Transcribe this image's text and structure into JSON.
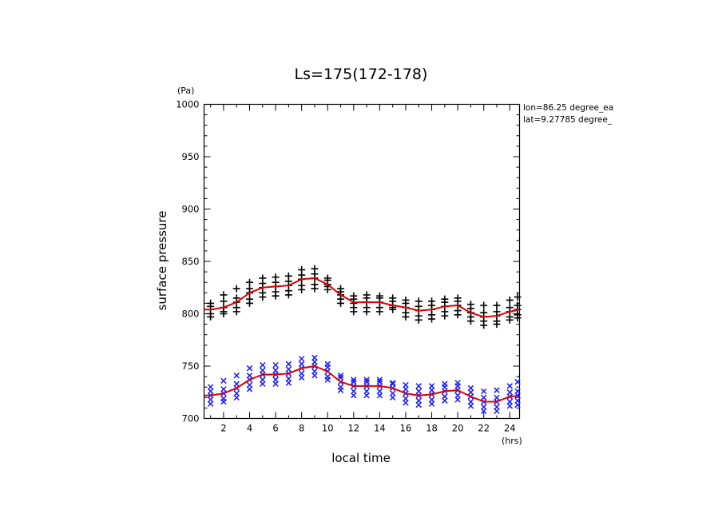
{
  "chart_data": {
    "type": "scatter",
    "title": "Ls=175(172-178)",
    "xlabel": "local time",
    "ylabel": "surface pressure",
    "x_unit": "(hrs)",
    "y_unit": "(Pa)",
    "xlim": [
      0.5,
      24.75
    ],
    "ylim": [
      700,
      1000
    ],
    "x_ticks": [
      2,
      4,
      6,
      8,
      10,
      12,
      14,
      16,
      18,
      20,
      22,
      24
    ],
    "y_ticks": [
      700,
      750,
      800,
      850,
      900,
      950,
      1000
    ],
    "annotations": [
      "lon=86.25 degree_ea",
      "lat=9.27785 degree_"
    ],
    "grid": false,
    "colors": {
      "upper_markers": "#000000",
      "lower_markers": "#1a1aff",
      "fit_line": "#dd0000",
      "axes": "#000000"
    },
    "series": [
      {
        "marker": "plus",
        "color": "#000000",
        "points": [
          [
            1,
            804
          ],
          [
            1,
            800
          ],
          [
            1,
            810
          ],
          [
            1,
            797
          ],
          [
            1,
            807
          ],
          [
            2,
            806
          ],
          [
            2,
            802
          ],
          [
            2,
            812
          ],
          [
            2,
            800
          ],
          [
            2,
            818
          ],
          [
            3,
            811
          ],
          [
            3,
            806
          ],
          [
            3,
            815
          ],
          [
            3,
            802
          ],
          [
            3,
            824
          ],
          [
            4,
            820
          ],
          [
            4,
            814
          ],
          [
            4,
            824
          ],
          [
            4,
            810
          ],
          [
            4,
            830
          ],
          [
            5,
            825
          ],
          [
            5,
            820
          ],
          [
            5,
            829
          ],
          [
            5,
            816
          ],
          [
            5,
            834
          ],
          [
            6,
            826
          ],
          [
            6,
            821
          ],
          [
            6,
            830
          ],
          [
            6,
            817
          ],
          [
            6,
            835
          ],
          [
            7,
            827
          ],
          [
            7,
            822
          ],
          [
            7,
            831
          ],
          [
            7,
            818
          ],
          [
            7,
            836
          ],
          [
            8,
            833
          ],
          [
            8,
            827
          ],
          [
            8,
            837
          ],
          [
            8,
            823
          ],
          [
            8,
            842
          ],
          [
            9,
            834
          ],
          [
            9,
            828
          ],
          [
            9,
            838
          ],
          [
            9,
            824
          ],
          [
            9,
            843
          ],
          [
            10,
            828
          ],
          [
            10,
            823
          ],
          [
            10,
            832
          ],
          [
            10,
            826
          ],
          [
            10,
            834
          ],
          [
            11,
            818
          ],
          [
            11,
            814
          ],
          [
            11,
            821
          ],
          [
            11,
            810
          ],
          [
            11,
            824
          ],
          [
            12,
            810
          ],
          [
            12,
            806
          ],
          [
            12,
            814
          ],
          [
            12,
            802
          ],
          [
            12,
            817
          ],
          [
            13,
            811
          ],
          [
            13,
            806
          ],
          [
            13,
            815
          ],
          [
            13,
            802
          ],
          [
            13,
            818
          ],
          [
            14,
            811
          ],
          [
            14,
            806
          ],
          [
            14,
            815
          ],
          [
            14,
            802
          ],
          [
            14,
            817
          ],
          [
            15,
            808
          ],
          [
            15,
            804
          ],
          [
            15,
            812
          ],
          [
            15,
            806
          ],
          [
            15,
            815
          ],
          [
            16,
            806
          ],
          [
            16,
            801
          ],
          [
            16,
            810
          ],
          [
            16,
            797
          ],
          [
            16,
            813
          ],
          [
            17,
            803
          ],
          [
            17,
            798
          ],
          [
            17,
            807
          ],
          [
            17,
            794
          ],
          [
            17,
            812
          ],
          [
            18,
            804
          ],
          [
            18,
            799
          ],
          [
            18,
            808
          ],
          [
            18,
            795
          ],
          [
            18,
            812
          ],
          [
            19,
            807
          ],
          [
            19,
            802
          ],
          [
            19,
            811
          ],
          [
            19,
            798
          ],
          [
            19,
            814
          ],
          [
            20,
            808
          ],
          [
            20,
            803
          ],
          [
            20,
            812
          ],
          [
            20,
            799
          ],
          [
            20,
            815
          ],
          [
            21,
            801
          ],
          [
            21,
            797
          ],
          [
            21,
            805
          ],
          [
            21,
            793
          ],
          [
            21,
            809
          ],
          [
            22,
            797
          ],
          [
            22,
            793
          ],
          [
            22,
            801
          ],
          [
            22,
            789
          ],
          [
            22,
            808
          ],
          [
            23,
            798
          ],
          [
            23,
            793
          ],
          [
            23,
            802
          ],
          [
            23,
            790
          ],
          [
            23,
            808
          ],
          [
            24,
            802
          ],
          [
            24,
            797
          ],
          [
            24,
            806
          ],
          [
            24,
            794
          ],
          [
            24,
            813
          ],
          [
            24.6,
            804
          ],
          [
            24.6,
            799
          ],
          [
            24.6,
            808
          ],
          [
            24.6,
            796
          ],
          [
            24.6,
            816
          ]
        ]
      },
      {
        "marker": "x",
        "color": "#1a1aff",
        "points": [
          [
            1,
            722
          ],
          [
            1,
            718
          ],
          [
            1,
            726
          ],
          [
            1,
            714
          ],
          [
            1,
            730
          ],
          [
            2,
            724
          ],
          [
            2,
            719
          ],
          [
            2,
            728
          ],
          [
            2,
            716
          ],
          [
            2,
            736
          ],
          [
            3,
            729
          ],
          [
            3,
            724
          ],
          [
            3,
            733
          ],
          [
            3,
            720
          ],
          [
            3,
            741
          ],
          [
            4,
            737
          ],
          [
            4,
            732
          ],
          [
            4,
            741
          ],
          [
            4,
            728
          ],
          [
            4,
            748
          ],
          [
            5,
            742
          ],
          [
            5,
            737
          ],
          [
            5,
            746
          ],
          [
            5,
            733
          ],
          [
            5,
            751
          ],
          [
            6,
            742
          ],
          [
            6,
            737
          ],
          [
            6,
            746
          ],
          [
            6,
            733
          ],
          [
            6,
            751
          ],
          [
            7,
            743
          ],
          [
            7,
            738
          ],
          [
            7,
            747
          ],
          [
            7,
            734
          ],
          [
            7,
            752
          ],
          [
            8,
            748
          ],
          [
            8,
            743
          ],
          [
            8,
            752
          ],
          [
            8,
            739
          ],
          [
            8,
            757
          ],
          [
            9,
            750
          ],
          [
            9,
            745
          ],
          [
            9,
            754
          ],
          [
            9,
            741
          ],
          [
            9,
            758
          ],
          [
            10,
            745
          ],
          [
            10,
            740
          ],
          [
            10,
            749
          ],
          [
            10,
            737
          ],
          [
            10,
            752
          ],
          [
            11,
            735
          ],
          [
            11,
            730
          ],
          [
            11,
            739
          ],
          [
            11,
            727
          ],
          [
            11,
            741
          ],
          [
            12,
            731
          ],
          [
            12,
            726
          ],
          [
            12,
            735
          ],
          [
            12,
            722
          ],
          [
            12,
            737
          ],
          [
            13,
            731
          ],
          [
            13,
            726
          ],
          [
            13,
            735
          ],
          [
            13,
            722
          ],
          [
            13,
            737
          ],
          [
            14,
            731
          ],
          [
            14,
            726
          ],
          [
            14,
            735
          ],
          [
            14,
            722
          ],
          [
            14,
            737
          ],
          [
            15,
            729
          ],
          [
            15,
            724
          ],
          [
            15,
            733
          ],
          [
            15,
            720
          ],
          [
            15,
            734
          ],
          [
            16,
            724
          ],
          [
            16,
            719
          ],
          [
            16,
            728
          ],
          [
            16,
            715
          ],
          [
            16,
            732
          ],
          [
            17,
            722
          ],
          [
            17,
            717
          ],
          [
            17,
            726
          ],
          [
            17,
            713
          ],
          [
            17,
            731
          ],
          [
            18,
            723
          ],
          [
            18,
            718
          ],
          [
            18,
            727
          ],
          [
            18,
            714
          ],
          [
            18,
            731
          ],
          [
            19,
            726
          ],
          [
            19,
            721
          ],
          [
            19,
            730
          ],
          [
            19,
            717
          ],
          [
            19,
            733
          ],
          [
            20,
            727
          ],
          [
            20,
            722
          ],
          [
            20,
            731
          ],
          [
            20,
            718
          ],
          [
            20,
            734
          ],
          [
            21,
            721
          ],
          [
            21,
            716
          ],
          [
            21,
            725
          ],
          [
            21,
            712
          ],
          [
            21,
            729
          ],
          [
            22,
            716
          ],
          [
            22,
            711
          ],
          [
            22,
            720
          ],
          [
            22,
            707
          ],
          [
            22,
            726
          ],
          [
            23,
            716
          ],
          [
            23,
            711
          ],
          [
            23,
            720
          ],
          [
            23,
            707
          ],
          [
            23,
            727
          ],
          [
            24,
            721
          ],
          [
            24,
            716
          ],
          [
            24,
            725
          ],
          [
            24,
            712
          ],
          [
            24,
            731
          ],
          [
            24.6,
            722
          ],
          [
            24.6,
            717
          ],
          [
            24.6,
            726
          ],
          [
            24.6,
            713
          ],
          [
            24.6,
            735
          ]
        ]
      },
      {
        "marker": "line",
        "color": "#dd0000",
        "points": [
          [
            0.5,
            804
          ],
          [
            1,
            804
          ],
          [
            2,
            806
          ],
          [
            3,
            811
          ],
          [
            4,
            820
          ],
          [
            5,
            825
          ],
          [
            6,
            826
          ],
          [
            7,
            827
          ],
          [
            8,
            833
          ],
          [
            9,
            834
          ],
          [
            10,
            828
          ],
          [
            11,
            818
          ],
          [
            12,
            811
          ],
          [
            13,
            811
          ],
          [
            14,
            811
          ],
          [
            15,
            808
          ],
          [
            16,
            806
          ],
          [
            17,
            803
          ],
          [
            18,
            804
          ],
          [
            19,
            807
          ],
          [
            20,
            808
          ],
          [
            21,
            801
          ],
          [
            22,
            797
          ],
          [
            23,
            798
          ],
          [
            24,
            802
          ],
          [
            24.75,
            804
          ]
        ]
      },
      {
        "marker": "line",
        "color": "#dd0000",
        "points": [
          [
            0.5,
            722
          ],
          [
            1,
            722
          ],
          [
            2,
            724
          ],
          [
            3,
            729
          ],
          [
            4,
            737
          ],
          [
            5,
            742
          ],
          [
            6,
            742
          ],
          [
            7,
            743
          ],
          [
            8,
            748
          ],
          [
            9,
            750
          ],
          [
            10,
            745
          ],
          [
            11,
            735
          ],
          [
            12,
            731
          ],
          [
            13,
            731
          ],
          [
            14,
            731
          ],
          [
            15,
            729
          ],
          [
            16,
            724
          ],
          [
            17,
            722
          ],
          [
            18,
            723
          ],
          [
            19,
            726
          ],
          [
            20,
            727
          ],
          [
            21,
            721
          ],
          [
            22,
            716
          ],
          [
            23,
            716
          ],
          [
            24,
            721
          ],
          [
            24.75,
            722
          ]
        ]
      }
    ]
  }
}
